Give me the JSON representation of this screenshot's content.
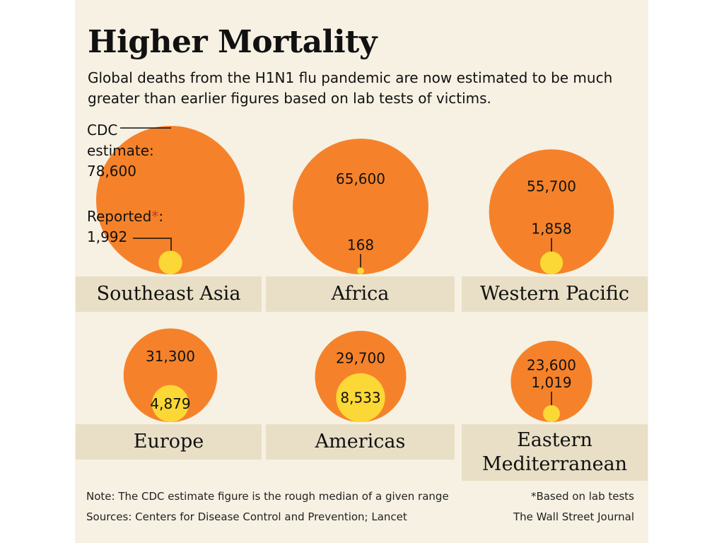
{
  "header": {
    "title": "Higher Mortality",
    "subtitle": "Global deaths from the H1N1 flu pandemic are now estimated to be much greater than earlier figures based on lab tests of victims."
  },
  "legend": {
    "estimate_label_1": "CDC",
    "estimate_label_2": "estimate:",
    "estimate_value": "78,600",
    "reported_label": "Reported",
    "reported_asterisk": "*",
    "reported_colon": ":",
    "reported_value": "1,992"
  },
  "colors": {
    "estimate": "#f5822a",
    "reported": "#fbd835",
    "label_bar": "#e9dfc6",
    "background": "#f6f1e3"
  },
  "chart_data": {
    "type": "bubble",
    "title": "Higher Mortality",
    "subtitle": "Global deaths from the H1N1 flu pandemic are now estimated to be much greater than earlier figures based on lab tests of victims.",
    "series": [
      {
        "name": "CDC estimate",
        "key": "estimate"
      },
      {
        "name": "Reported",
        "key": "reported"
      }
    ],
    "regions": [
      {
        "name": "Southeast Asia",
        "estimate": 78600,
        "estimate_label": "78,600",
        "reported": 1992,
        "reported_label": "1,992"
      },
      {
        "name": "Africa",
        "estimate": 65600,
        "estimate_label": "65,600",
        "reported": 168,
        "reported_label": "168"
      },
      {
        "name": "Western Pacific",
        "estimate": 55700,
        "estimate_label": "55,700",
        "reported": 1858,
        "reported_label": "1,858"
      },
      {
        "name": "Europe",
        "estimate": 31300,
        "estimate_label": "31,300",
        "reported": 4879,
        "reported_label": "4,879"
      },
      {
        "name": "Americas",
        "estimate": 29700,
        "estimate_label": "29,700",
        "reported": 8533,
        "reported_label": "8,533"
      },
      {
        "name": "Eastern Mediterranean",
        "name_lines": [
          "Eastern",
          "Mediterranean"
        ],
        "estimate": 23600,
        "estimate_label": "23,600",
        "reported": 1019,
        "reported_label": "1,019"
      }
    ]
  },
  "footer": {
    "note": "Note: The CDC estimate figure is the rough median of a given range",
    "sources": "Sources: Centers for Disease Control and Prevention; Lancet",
    "footnote": "*Based on lab tests",
    "credit": "The Wall Street Journal"
  }
}
